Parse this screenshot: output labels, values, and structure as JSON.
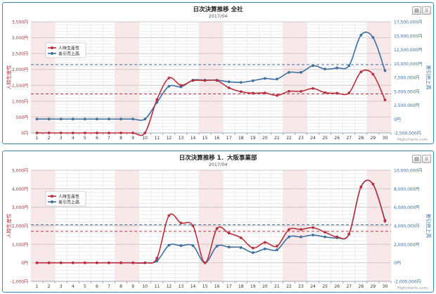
{
  "colors": {
    "frame": "#3a8ab8",
    "red": "#b8303e",
    "blue": "#3d6fa0",
    "band": "#fbe6e8"
  },
  "toolbar": {
    "print_icon": "print-icon",
    "export_icon": "download-icon"
  },
  "chart_data": [
    {
      "type": "line",
      "title": "日次決算推移 全社",
      "subtitle": "2017/04",
      "ylabel_left": "人時生産性",
      "ylabel_right": "差引売上高",
      "credits": "Highcharts.com",
      "x": [
        1,
        2,
        3,
        4,
        5,
        6,
        7,
        8,
        9,
        10,
        11,
        12,
        13,
        14,
        15,
        16,
        17,
        18,
        19,
        20,
        21,
        22,
        23,
        24,
        25,
        26,
        27,
        28,
        29,
        30
      ],
      "y_left": {
        "min": 0,
        "max": 3500,
        "ticks": [
          "0円",
          "500円",
          "1,000円",
          "1,500円",
          "2,000円",
          "2,500円",
          "3,000円",
          "3,500円"
        ]
      },
      "y_right": {
        "min": -2500000,
        "max": 17500000,
        "ticks": [
          "-2,500,000円",
          "0円",
          "2,500,000円",
          "5,000,000円",
          "7,500,000円",
          "10,000,000円",
          "12,500,000円",
          "15,000,000円",
          "17,500,000円"
        ]
      },
      "y_bottom_extra": "",
      "weekend_bands": [
        [
          1,
          2
        ],
        [
          8,
          9
        ],
        [
          15,
          16
        ],
        [
          22,
          23
        ],
        [
          29,
          30
        ]
      ],
      "plotlines": {
        "left_value": 1230,
        "right_value": 9800000
      },
      "series": [
        {
          "name": "人時生産性",
          "axis": "left",
          "color": "#b8303e",
          "values": [
            0,
            0,
            0,
            0,
            0,
            0,
            0,
            0,
            0,
            0,
            1050,
            1730,
            1500,
            1650,
            1650,
            1650,
            1420,
            1300,
            1250,
            1260,
            1180,
            1310,
            1310,
            1400,
            1270,
            1250,
            1260,
            1920,
            1850,
            1040
          ]
        },
        {
          "name": "差引売上高",
          "axis": "right",
          "color": "#3d6fa0",
          "values": [
            0,
            0,
            0,
            0,
            0,
            0,
            0,
            0,
            0,
            0,
            3000000,
            5900000,
            5800000,
            7000000,
            7000000,
            7000000,
            6700000,
            6600000,
            6900000,
            7300000,
            7200000,
            8400000,
            8400000,
            9600000,
            9000000,
            9200000,
            9600000,
            15100000,
            14700000,
            8700000
          ]
        }
      ]
    },
    {
      "type": "line",
      "title": "日次決算推移 1．大阪事業部",
      "subtitle": "2017/04",
      "ylabel_left": "人時生産性",
      "ylabel_right": "差引売上高",
      "credits": "Highcharts.com",
      "x": [
        1,
        2,
        3,
        4,
        5,
        6,
        7,
        8,
        9,
        10,
        11,
        12,
        13,
        14,
        15,
        16,
        17,
        18,
        19,
        20,
        21,
        22,
        23,
        24,
        25,
        26,
        27,
        28,
        29,
        30
      ],
      "y_left": {
        "min": -1000,
        "max": 5000,
        "ticks": [
          "-1,000円",
          "0円",
          "1,000円",
          "2,000円",
          "3,000円",
          "4,000円",
          "5,000円"
        ]
      },
      "y_right": {
        "min": -2000000,
        "max": 10000000,
        "ticks": [
          "-2,000,000円",
          "0円",
          "2,000,000円",
          "4,000,000円",
          "6,000,000円",
          "8,000,000円",
          "10,000,000円"
        ]
      },
      "weekend_bands": [
        [
          1,
          2
        ],
        [
          8,
          9
        ],
        [
          15,
          16
        ],
        [
          22,
          23
        ],
        [
          29,
          30
        ]
      ],
      "plotlines": {
        "left_value": 1700,
        "right_value": 4100000
      },
      "series": [
        {
          "name": "人時生産性",
          "axis": "left",
          "color": "#b8303e",
          "values": [
            0,
            0,
            0,
            0,
            0,
            0,
            0,
            0,
            0,
            0,
            250,
            2550,
            2150,
            2000,
            0,
            1850,
            1600,
            1350,
            800,
            1100,
            900,
            1800,
            1800,
            1900,
            1650,
            1400,
            1550,
            4100,
            4250,
            2250
          ]
        },
        {
          "name": "差引売上高",
          "axis": "right",
          "color": "#3d6fa0",
          "values": [
            0,
            0,
            0,
            0,
            0,
            0,
            0,
            0,
            0,
            0,
            200000,
            1900000,
            1850000,
            1850000,
            0,
            1800000,
            1700000,
            1650000,
            1100000,
            1500000,
            1400000,
            2800000,
            2800000,
            3000000,
            2800000,
            2700000,
            3100000,
            8200000,
            8500000,
            4600000
          ]
        }
      ]
    }
  ]
}
